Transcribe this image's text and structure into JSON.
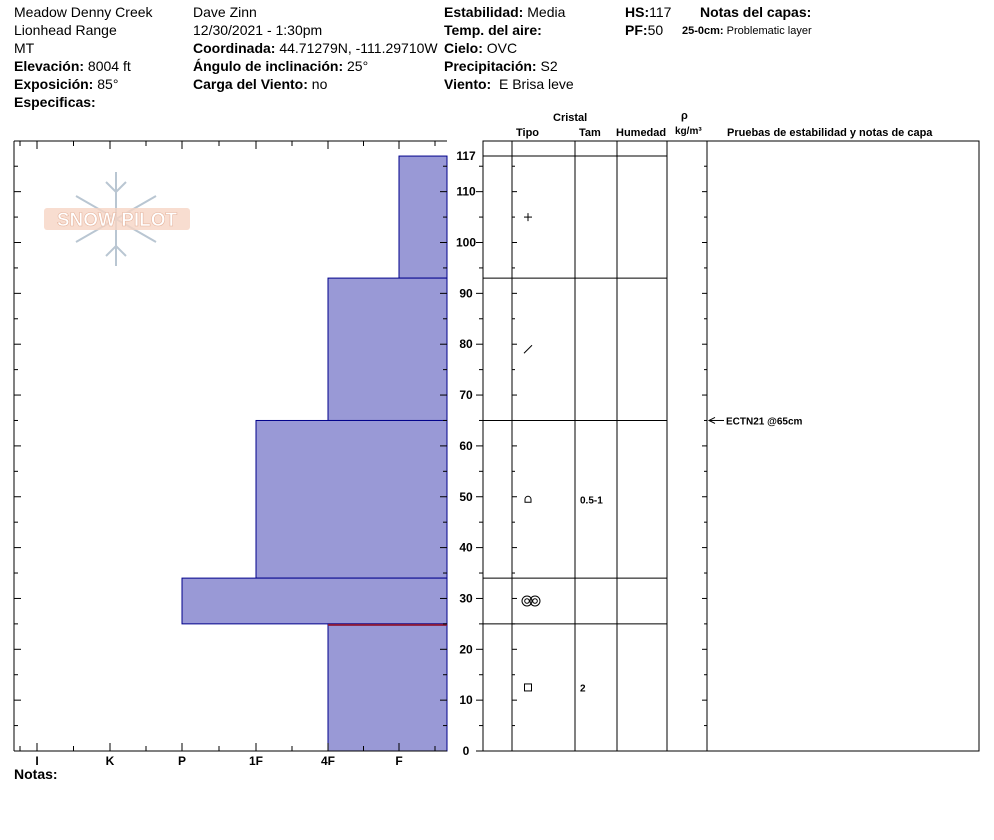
{
  "header": {
    "location": "Meadow Denny Creek",
    "range": "Lionhead Range",
    "state": "MT",
    "elevation_label": "Elevación:",
    "elevation": "8004 ft",
    "aspect_label": "Exposición:",
    "aspect": "85°",
    "specifics_label": "Especificas:",
    "observer": "Dave Zinn",
    "datetime": "12/30/2021 - 1:30pm",
    "coord_label": "Coordinada:",
    "coord": "44.71279N, -111.29710W",
    "slope_label": "Ángulo de inclinación:",
    "slope": "25°",
    "wind_load_label": "Carga del Viento:",
    "wind_load": "no",
    "stability_label": "Estabilidad:",
    "stability": "Media",
    "air_temp_label": "Temp. del aire:",
    "sky_label": "Cielo:",
    "sky": "OVC",
    "precip_label": "Precipitación:",
    "precip": "S2",
    "wind_label": "Viento:",
    "wind": "E Brisa leve",
    "hs_label": "HS:",
    "hs": "117",
    "pf_label": "PF:",
    "pf": "50",
    "layer_notes_label": "Notas del capas:",
    "layer_note_depth": "25-0cm:",
    "layer_note_text": "Problematic layer"
  },
  "logo_text": "SNOW PILOT",
  "notes_label": "Notas:",
  "columns": {
    "crystal": "Cristal",
    "type": "Tipo",
    "size": "Tam",
    "moisture": "Humedad",
    "rho": "ρ",
    "density_unit": "kg/m³",
    "tests": "Pruebas de estabilidad y notas de capa"
  },
  "colors": {
    "profile_fill": "#9999d6",
    "profile_stroke": "#00008b",
    "problem_line": "#8b1a3a"
  },
  "chart_data": {
    "type": "bar",
    "orientation": "horizontal-step",
    "hardness_scale": [
      "I",
      "K",
      "P",
      "1F",
      "4F",
      "F"
    ],
    "y_ticks": [
      0,
      10,
      20,
      30,
      40,
      50,
      60,
      70,
      80,
      90,
      100,
      110
    ],
    "y_top_label": "117",
    "ylim": [
      0,
      117
    ],
    "layers": [
      {
        "bottom": 93,
        "top": 117,
        "hardness": 5,
        "type_symbol": "+",
        "size": ""
      },
      {
        "bottom": 65,
        "top": 93,
        "hardness": 4,
        "type_symbol": "/",
        "size": ""
      },
      {
        "bottom": 34,
        "top": 65,
        "hardness": 3,
        "type_symbol": "rounded",
        "size": "0.5-1"
      },
      {
        "bottom": 25,
        "top": 34,
        "hardness": 2,
        "type_symbol": "double-circle",
        "size": ""
      },
      {
        "bottom": 0,
        "top": 25,
        "hardness": 4,
        "type_symbol": "square",
        "size": "2"
      }
    ],
    "problem_layer_depth": 25,
    "tests": [
      {
        "depth": 65,
        "label": "ECTN21 @65cm"
      }
    ]
  }
}
